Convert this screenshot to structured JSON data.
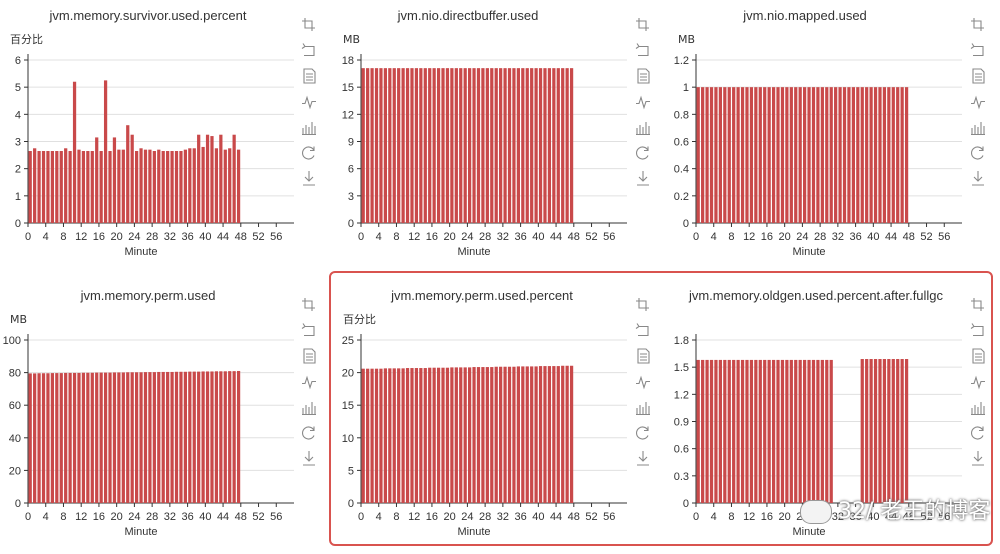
{
  "colors": {
    "bar": "#c23531",
    "bar_fill": "#c9494a",
    "axis": "#333333",
    "grid": "#e0e0e0",
    "toolbox": "#888888"
  },
  "toolbox_icons": [
    "zoom-icon",
    "zoom-reset-icon",
    "data-view-icon",
    "line-chart-icon",
    "bar-chart-icon",
    "restore-icon",
    "download-icon"
  ],
  "watermark": "32/ 老王的博客",
  "chart_data": [
    {
      "type": "bar",
      "title": "jvm.memory.survivor.used.percent",
      "ylabel": "百分比",
      "xlabel": "Minute",
      "ylim": [
        0,
        6
      ],
      "yticks": [
        0,
        1,
        2,
        3,
        4,
        5,
        6
      ],
      "xticks": [
        0,
        4,
        8,
        12,
        16,
        20,
        24,
        28,
        32,
        36,
        40,
        44,
        48,
        52,
        56
      ],
      "x": [
        0,
        1,
        2,
        3,
        4,
        5,
        6,
        7,
        8,
        9,
        10,
        11,
        12,
        13,
        14,
        15,
        16,
        17,
        18,
        19,
        20,
        21,
        22,
        23,
        24,
        25,
        26,
        27,
        28,
        29,
        30,
        31,
        32,
        33,
        34,
        35,
        36,
        37,
        38,
        39,
        40,
        41,
        42,
        43,
        44,
        45,
        46,
        47
      ],
      "values": [
        2.65,
        2.75,
        2.65,
        2.65,
        2.65,
        2.65,
        2.65,
        2.65,
        2.75,
        2.65,
        5.2,
        2.7,
        2.65,
        2.65,
        2.65,
        3.15,
        2.65,
        5.25,
        2.65,
        3.15,
        2.7,
        2.7,
        3.6,
        3.25,
        2.65,
        2.75,
        2.7,
        2.7,
        2.65,
        2.7,
        2.65,
        2.65,
        2.65,
        2.65,
        2.65,
        2.7,
        2.75,
        2.75,
        3.25,
        2.8,
        3.25,
        3.2,
        2.75,
        3.25,
        2.7,
        2.75,
        3.25,
        2.7
      ]
    },
    {
      "type": "bar",
      "title": "jvm.nio.directbuffer.used",
      "ylabel": "MB",
      "xlabel": "Minute",
      "ylim": [
        0,
        18
      ],
      "yticks": [
        0,
        3,
        6,
        9,
        12,
        15,
        18
      ],
      "xticks": [
        0,
        4,
        8,
        12,
        16,
        20,
        24,
        28,
        32,
        36,
        40,
        44,
        48,
        52,
        56
      ],
      "x": [
        0,
        1,
        2,
        3,
        4,
        5,
        6,
        7,
        8,
        9,
        10,
        11,
        12,
        13,
        14,
        15,
        16,
        17,
        18,
        19,
        20,
        21,
        22,
        23,
        24,
        25,
        26,
        27,
        28,
        29,
        30,
        31,
        32,
        33,
        34,
        35,
        36,
        37,
        38,
        39,
        40,
        41,
        42,
        43,
        44,
        45,
        46,
        47
      ],
      "values": [
        17.1,
        17.1,
        17.1,
        17.1,
        17.1,
        17.1,
        17.1,
        17.1,
        17.1,
        17.1,
        17.1,
        17.1,
        17.1,
        17.1,
        17.1,
        17.1,
        17.1,
        17.1,
        17.1,
        17.1,
        17.1,
        17.1,
        17.1,
        17.1,
        17.1,
        17.1,
        17.1,
        17.1,
        17.1,
        17.1,
        17.1,
        17.1,
        17.1,
        17.1,
        17.1,
        17.1,
        17.1,
        17.1,
        17.1,
        17.1,
        17.1,
        17.1,
        17.1,
        17.1,
        17.1,
        17.1,
        17.1,
        17.1
      ]
    },
    {
      "type": "bar",
      "title": "jvm.nio.mapped.used",
      "ylabel": "MB",
      "xlabel": "Minute",
      "ylim": [
        0,
        1.2
      ],
      "yticks": [
        "0",
        "0.2",
        "0.4",
        "0.6",
        "0.8",
        "1",
        "1.2"
      ],
      "xticks": [
        0,
        4,
        8,
        12,
        16,
        20,
        24,
        28,
        32,
        36,
        40,
        44,
        48,
        52,
        56
      ],
      "x": [
        0,
        1,
        2,
        3,
        4,
        5,
        6,
        7,
        8,
        9,
        10,
        11,
        12,
        13,
        14,
        15,
        16,
        17,
        18,
        19,
        20,
        21,
        22,
        23,
        24,
        25,
        26,
        27,
        28,
        29,
        30,
        31,
        32,
        33,
        34,
        35,
        36,
        37,
        38,
        39,
        40,
        41,
        42,
        43,
        44,
        45,
        46,
        47
      ],
      "values": [
        1,
        1,
        1,
        1,
        1,
        1,
        1,
        1,
        1,
        1,
        1,
        1,
        1,
        1,
        1,
        1,
        1,
        1,
        1,
        1,
        1,
        1,
        1,
        1,
        1,
        1,
        1,
        1,
        1,
        1,
        1,
        1,
        1,
        1,
        1,
        1,
        1,
        1,
        1,
        1,
        1,
        1,
        1,
        1,
        1,
        1,
        1,
        1
      ]
    },
    {
      "type": "bar",
      "title": "jvm.memory.perm.used",
      "ylabel": "MB",
      "xlabel": "Minute",
      "ylim": [
        0,
        100
      ],
      "yticks": [
        0,
        20,
        40,
        60,
        80,
        100
      ],
      "xticks": [
        0,
        4,
        8,
        12,
        16,
        20,
        24,
        28,
        32,
        36,
        40,
        44,
        48,
        52,
        56
      ],
      "x": [
        0,
        1,
        2,
        3,
        4,
        5,
        6,
        7,
        8,
        9,
        10,
        11,
        12,
        13,
        14,
        15,
        16,
        17,
        18,
        19,
        20,
        21,
        22,
        23,
        24,
        25,
        26,
        27,
        28,
        29,
        30,
        31,
        32,
        33,
        34,
        35,
        36,
        37,
        38,
        39,
        40,
        41,
        42,
        43,
        44,
        45,
        46,
        47
      ],
      "values": [
        79.5,
        79.5,
        79.6,
        79.6,
        79.6,
        79.7,
        79.7,
        79.7,
        79.8,
        79.8,
        79.8,
        79.8,
        79.9,
        79.9,
        79.9,
        80,
        80,
        80,
        80,
        80.1,
        80.1,
        80.1,
        80.2,
        80.2,
        80.2,
        80.2,
        80.3,
        80.3,
        80.3,
        80.4,
        80.4,
        80.4,
        80.4,
        80.5,
        80.5,
        80.5,
        80.6,
        80.6,
        80.6,
        80.7,
        80.7,
        80.7,
        80.8,
        80.8,
        80.8,
        80.9,
        80.9,
        81
      ]
    },
    {
      "type": "bar",
      "title": "jvm.memory.perm.used.percent",
      "ylabel": "百分比",
      "xlabel": "Minute",
      "ylim": [
        0,
        25
      ],
      "yticks": [
        0,
        5,
        10,
        15,
        20,
        25
      ],
      "xticks": [
        0,
        4,
        8,
        12,
        16,
        20,
        24,
        28,
        32,
        36,
        40,
        44,
        48,
        52,
        56
      ],
      "x": [
        0,
        1,
        2,
        3,
        4,
        5,
        6,
        7,
        8,
        9,
        10,
        11,
        12,
        13,
        14,
        15,
        16,
        17,
        18,
        19,
        20,
        21,
        22,
        23,
        24,
        25,
        26,
        27,
        28,
        29,
        30,
        31,
        32,
        33,
        34,
        35,
        36,
        37,
        38,
        39,
        40,
        41,
        42,
        43,
        44,
        45,
        46,
        47
      ],
      "values": [
        20.6,
        20.6,
        20.6,
        20.6,
        20.6,
        20.65,
        20.65,
        20.65,
        20.65,
        20.65,
        20.7,
        20.7,
        20.7,
        20.7,
        20.7,
        20.75,
        20.75,
        20.75,
        20.75,
        20.75,
        20.8,
        20.8,
        20.8,
        20.8,
        20.8,
        20.85,
        20.85,
        20.85,
        20.85,
        20.85,
        20.9,
        20.9,
        20.9,
        20.9,
        20.9,
        20.95,
        20.95,
        20.95,
        20.95,
        20.95,
        21,
        21,
        21,
        21,
        21,
        21.05,
        21.05,
        21.05
      ]
    },
    {
      "type": "bar",
      "title": "jvm.memory.oldgen.used.percent.after.fullgc",
      "ylabel": "",
      "xlabel": "Minute",
      "ylim": [
        0,
        1.8
      ],
      "yticks": [
        "0",
        "0.3",
        "0.6",
        "0.9",
        "1.2",
        "1.5",
        "1.8"
      ],
      "xticks": [
        0,
        4,
        8,
        12,
        16,
        20,
        24,
        28,
        32,
        36,
        40,
        44,
        48,
        52,
        56
      ],
      "x": [
        0,
        1,
        2,
        3,
        4,
        5,
        6,
        7,
        8,
        9,
        10,
        11,
        12,
        13,
        14,
        15,
        16,
        17,
        18,
        19,
        20,
        21,
        22,
        23,
        24,
        25,
        26,
        27,
        28,
        29,
        30,
        31,
        32,
        33,
        34,
        35,
        36,
        37,
        38,
        39,
        40,
        41,
        42,
        43,
        44,
        45,
        46,
        47
      ],
      "values": [
        1.58,
        1.58,
        1.58,
        1.58,
        1.58,
        1.58,
        1.58,
        1.58,
        1.58,
        1.58,
        1.58,
        1.58,
        1.58,
        1.58,
        1.58,
        1.58,
        1.58,
        1.58,
        1.58,
        1.58,
        1.58,
        1.58,
        1.58,
        1.58,
        1.58,
        1.58,
        1.58,
        1.58,
        1.58,
        1.58,
        1.58,
        null,
        null,
        null,
        null,
        null,
        null,
        1.59,
        1.59,
        1.59,
        1.59,
        1.59,
        1.59,
        1.59,
        1.59,
        1.59,
        1.59,
        1.59
      ]
    }
  ]
}
